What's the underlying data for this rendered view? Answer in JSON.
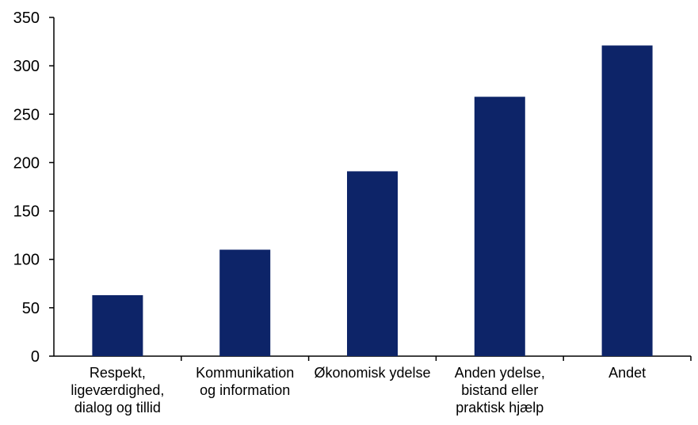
{
  "chart_data": {
    "type": "bar",
    "categories": [
      [
        "Respekt,",
        "ligeværdighed,",
        "dialog og tillid"
      ],
      [
        "Kommunikation",
        "og information"
      ],
      [
        "Økonomisk ydelse"
      ],
      [
        "Anden ydelse,",
        "bistand eller",
        "praktisk hjælp"
      ],
      [
        "Andet"
      ]
    ],
    "values": [
      63,
      110,
      191,
      268,
      321
    ],
    "ylim": [
      0,
      350
    ],
    "yticks": [
      0,
      50,
      100,
      150,
      200,
      250,
      300,
      350
    ],
    "grid": false,
    "bar_color": "#0d2468",
    "axis_color": "#000000"
  }
}
